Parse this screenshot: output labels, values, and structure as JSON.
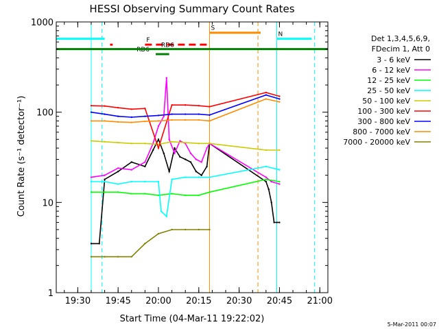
{
  "chart_data": {
    "type": "line",
    "title": "HESSI Observing Summary Count Rates",
    "xlabel": "Start Time (04-Mar-11 19:22:02)",
    "ylabel": "Count Rate (s⁻¹ detector⁻¹)",
    "yscale": "log",
    "ylim": [
      1,
      1000
    ],
    "xlim": [
      "19:22",
      "21:03"
    ],
    "x_ticks": [
      "19:30",
      "19:45",
      "20:00",
      "20:15",
      "20:30",
      "20:45",
      "21:00"
    ],
    "y_ticks": [
      "1",
      "10",
      "100",
      "1000"
    ],
    "footer": "5-Mar-2011 00:07",
    "legend": {
      "placement": "right",
      "header": [
        "Det 1,3,4,5,6,9,",
        "FDecim 1, Att 0"
      ],
      "entries": [
        {
          "label": "3 - 6 keV",
          "color": "#000000"
        },
        {
          "label": "6 - 12 keV",
          "color": "#ff00ff"
        },
        {
          "label": "12 - 25 keV",
          "color": "#00ff00"
        },
        {
          "label": "25 - 50 keV",
          "color": "#00ffff"
        },
        {
          "label": "50 - 100 keV",
          "color": "#cccc00"
        },
        {
          "label": "100 - 300 keV",
          "color": "#ff0000"
        },
        {
          "label": "300 - 800 keV",
          "color": "#0000ff"
        },
        {
          "label": "800 - 7000 keV",
          "color": "#ff8c00"
        },
        {
          "label": "7000 - 20000 keV",
          "color": "#808000"
        }
      ]
    },
    "flags": [
      {
        "label": "N",
        "color": "#00ffff",
        "value": 650,
        "segments": [
          [
            "19:22",
            "19:40"
          ],
          [
            "20:44",
            "20:57"
          ]
        ]
      },
      {
        "label": "S",
        "color": "#ff8c00",
        "value": 760,
        "segments": [
          [
            "20:19",
            "20:38"
          ]
        ]
      },
      {
        "label": "F",
        "color": "#ff0000",
        "value": 560,
        "segments": [
          [
            "19:42",
            "19:43"
          ],
          [
            "19:55",
            "20:19"
          ]
        ]
      },
      {
        "label": "RD6",
        "color": "#008000",
        "value": 440,
        "segments": [
          [
            "19:59",
            "20:04"
          ]
        ]
      },
      {
        "label": "RD6",
        "color": "#008000",
        "value": 500,
        "segments": [
          [
            "19:22",
            "21:03"
          ]
        ]
      }
    ],
    "vlines": [
      {
        "time": "19:35",
        "color": "#00ffff",
        "style": "solid"
      },
      {
        "time": "19:39",
        "color": "#00ffff",
        "style": "dashed"
      },
      {
        "time": "20:19",
        "color": "#ff8c00",
        "style": "solid"
      },
      {
        "time": "20:37",
        "color": "#ff8c00",
        "style": "dashed"
      },
      {
        "time": "20:44",
        "color": "#00ffff",
        "style": "solid"
      },
      {
        "time": "20:58",
        "color": "#00ffff",
        "style": "dashed"
      }
    ],
    "gaps": [
      [
        "19:22",
        "19:35"
      ],
      [
        "20:19",
        "20:40"
      ],
      [
        "20:45",
        "21:03"
      ]
    ],
    "series": [
      {
        "name": "3 - 6 keV",
        "color": "#000000",
        "x": [
          "19:35",
          "19:38",
          "19:40",
          "19:45",
          "19:50",
          "19:55",
          "19:58",
          "20:00",
          "20:02",
          "20:04",
          "20:06",
          "20:08",
          "20:10",
          "20:12",
          "20:14",
          "20:16",
          "20:18",
          "20:19",
          "20:40",
          "20:41",
          "20:42",
          "20:43",
          "20:44",
          "20:45"
        ],
        "y": [
          3.5,
          3.5,
          18,
          22,
          28,
          25,
          38,
          50,
          35,
          22,
          40,
          32,
          30,
          28,
          22,
          20,
          25,
          45,
          17,
          14,
          10,
          6,
          6,
          6
        ]
      },
      {
        "name": "6 - 12 keV",
        "color": "#ff00ff",
        "x": [
          "19:35",
          "19:40",
          "19:45",
          "19:50",
          "19:55",
          "19:58",
          "20:00",
          "20:02",
          "20:03",
          "20:04",
          "20:06",
          "20:08",
          "20:10",
          "20:12",
          "20:14",
          "20:16",
          "20:18",
          "20:19",
          "20:40",
          "20:42",
          "20:45"
        ],
        "y": [
          19,
          20,
          24,
          23,
          28,
          45,
          70,
          90,
          240,
          50,
          35,
          48,
          45,
          35,
          30,
          28,
          40,
          45,
          19,
          17,
          16
        ]
      },
      {
        "name": "12 - 25 keV",
        "color": "#00ff00",
        "x": [
          "19:35",
          "19:40",
          "19:45",
          "19:50",
          "19:55",
          "20:00",
          "20:05",
          "20:10",
          "20:15",
          "20:19",
          "20:40",
          "20:45"
        ],
        "y": [
          13,
          13,
          13,
          12.5,
          12.5,
          12,
          12.5,
          12,
          12,
          13,
          18,
          17
        ]
      },
      {
        "name": "25 - 50 keV",
        "color": "#00ffff",
        "x": [
          "19:35",
          "19:40",
          "19:45",
          "19:50",
          "19:55",
          "20:00",
          "20:01",
          "20:03",
          "20:05",
          "20:10",
          "20:15",
          "20:19",
          "20:40",
          "20:45"
        ],
        "y": [
          17,
          17,
          16,
          17,
          17,
          17,
          8,
          7,
          18,
          19,
          19,
          19,
          25,
          23
        ]
      },
      {
        "name": "50 - 100 keV",
        "color": "#cccc00",
        "x": [
          "19:35",
          "19:40",
          "19:45",
          "19:50",
          "19:55",
          "20:00",
          "20:05",
          "20:10",
          "20:15",
          "20:19",
          "20:40",
          "20:45"
        ],
        "y": [
          48,
          47,
          46,
          45,
          45,
          44,
          47,
          46,
          45,
          45,
          38,
          38
        ]
      },
      {
        "name": "100 - 300 keV",
        "color": "#ff0000",
        "x": [
          "19:35",
          "19:40",
          "19:45",
          "19:50",
          "19:55",
          "20:00",
          "20:05",
          "20:10",
          "20:15",
          "20:19",
          "20:40",
          "20:45"
        ],
        "y": [
          118,
          117,
          112,
          108,
          110,
          40,
          120,
          120,
          118,
          115,
          165,
          150
        ]
      },
      {
        "name": "300 - 800 keV",
        "color": "#0000ff",
        "x": [
          "19:35",
          "19:40",
          "19:45",
          "19:50",
          "19:55",
          "20:00",
          "20:05",
          "20:10",
          "20:15",
          "20:19",
          "20:40",
          "20:45"
        ],
        "y": [
          100,
          95,
          90,
          88,
          90,
          92,
          95,
          95,
          95,
          93,
          155,
          140
        ]
      },
      {
        "name": "800 - 7000 keV",
        "color": "#ff8c00",
        "x": [
          "19:35",
          "19:40",
          "19:45",
          "19:50",
          "19:55",
          "20:00",
          "20:05",
          "20:10",
          "20:15",
          "20:19",
          "20:40",
          "20:45"
        ],
        "y": [
          80,
          80,
          78,
          77,
          79,
          80,
          82,
          82,
          82,
          80,
          140,
          130
        ]
      },
      {
        "name": "7000 - 20000 keV",
        "color": "#808000",
        "x": [
          "19:35",
          "19:40",
          "19:45",
          "19:50",
          "19:55",
          "20:00",
          "20:05",
          "20:10",
          "20:15",
          "20:19"
        ],
        "y": [
          2.5,
          2.5,
          2.5,
          2.5,
          3.5,
          4.5,
          5,
          5,
          5,
          5
        ]
      }
    ]
  }
}
